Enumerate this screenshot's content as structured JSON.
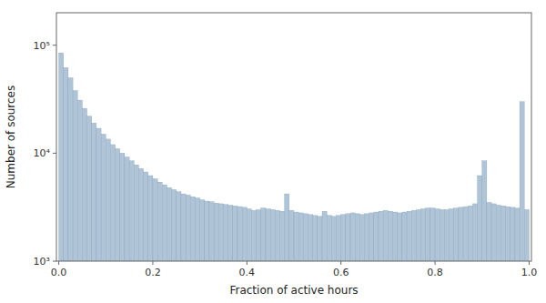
{
  "chart_data": {
    "type": "histogram",
    "x_label": "Fraction of active hours",
    "y_label": "Number of sources",
    "color": "#b0c4d8",
    "log": "y",
    "grid": false,
    "xlim": [
      -0.005,
      1.005
    ],
    "ylim": [
      1000,
      200000
    ],
    "xticks": [
      {
        "value": 0,
        "label": "0.0"
      },
      0.2,
      0.4,
      0.6,
      0.8,
      {
        "value": 1,
        "label": "1.0"
      }
    ],
    "yticks": [
      {
        "value": 1000,
        "label": "10³"
      },
      {
        "value": 10000,
        "label": "10⁴"
      },
      {
        "value": 100000,
        "label": "10⁵"
      }
    ],
    "bins": [
      0,
      0.01,
      0.02,
      0.03,
      0.04,
      0.05,
      0.06,
      0.07,
      0.08,
      0.09,
      0.1,
      0.11,
      0.12,
      0.13,
      0.14,
      0.15,
      0.16,
      0.17,
      0.18,
      0.19,
      0.2,
      0.21,
      0.22,
      0.23,
      0.24,
      0.25,
      0.26,
      0.27,
      0.28,
      0.29,
      0.3,
      0.31,
      0.32,
      0.33,
      0.34,
      0.35,
      0.36,
      0.37,
      0.38,
      0.39,
      0.4,
      0.41,
      0.42,
      0.43,
      0.44,
      0.45,
      0.46,
      0.47,
      0.48,
      0.49,
      0.5,
      0.51,
      0.52,
      0.53,
      0.54,
      0.55,
      0.56,
      0.57,
      0.58,
      0.59,
      0.6,
      0.61,
      0.62,
      0.63,
      0.64,
      0.65,
      0.66,
      0.67,
      0.68,
      0.69,
      0.7,
      0.71,
      0.72,
      0.73,
      0.74,
      0.75,
      0.76,
      0.77,
      0.78,
      0.79,
      0.8,
      0.81,
      0.82,
      0.83,
      0.84,
      0.85,
      0.86,
      0.87,
      0.88,
      0.89,
      0.9,
      0.91,
      0.92,
      0.93,
      0.94,
      0.95,
      0.96,
      0.97,
      0.98,
      0.99,
      1
    ],
    "values": [
      85000,
      62000,
      50000,
      38000,
      31000,
      26000,
      22000,
      19000,
      17000,
      15000,
      13500,
      12000,
      11000,
      10000,
      9200,
      8500,
      7800,
      7200,
      6700,
      6200,
      5800,
      5400,
      5100,
      4800,
      4600,
      4400,
      4200,
      4100,
      3950,
      3850,
      3700,
      3600,
      3550,
      3450,
      3400,
      3350,
      3300,
      3250,
      3200,
      3150,
      3050,
      2950,
      3000,
      3100,
      3050,
      3000,
      2950,
      2900,
      4200,
      2950,
      2850,
      2800,
      2750,
      2700,
      2650,
      2600,
      2900,
      2650,
      2600,
      2650,
      2700,
      2750,
      2800,
      2750,
      2700,
      2750,
      2800,
      2850,
      2900,
      2950,
      2900,
      2850,
      2800,
      2850,
      2900,
      2950,
      3000,
      3050,
      3100,
      3100,
      3050,
      3000,
      3000,
      3050,
      3100,
      3150,
      3200,
      3250,
      3400,
      6200,
      8500,
      3500,
      3400,
      3300,
      3250,
      3200,
      3150,
      3100,
      30000,
      3000
    ]
  }
}
